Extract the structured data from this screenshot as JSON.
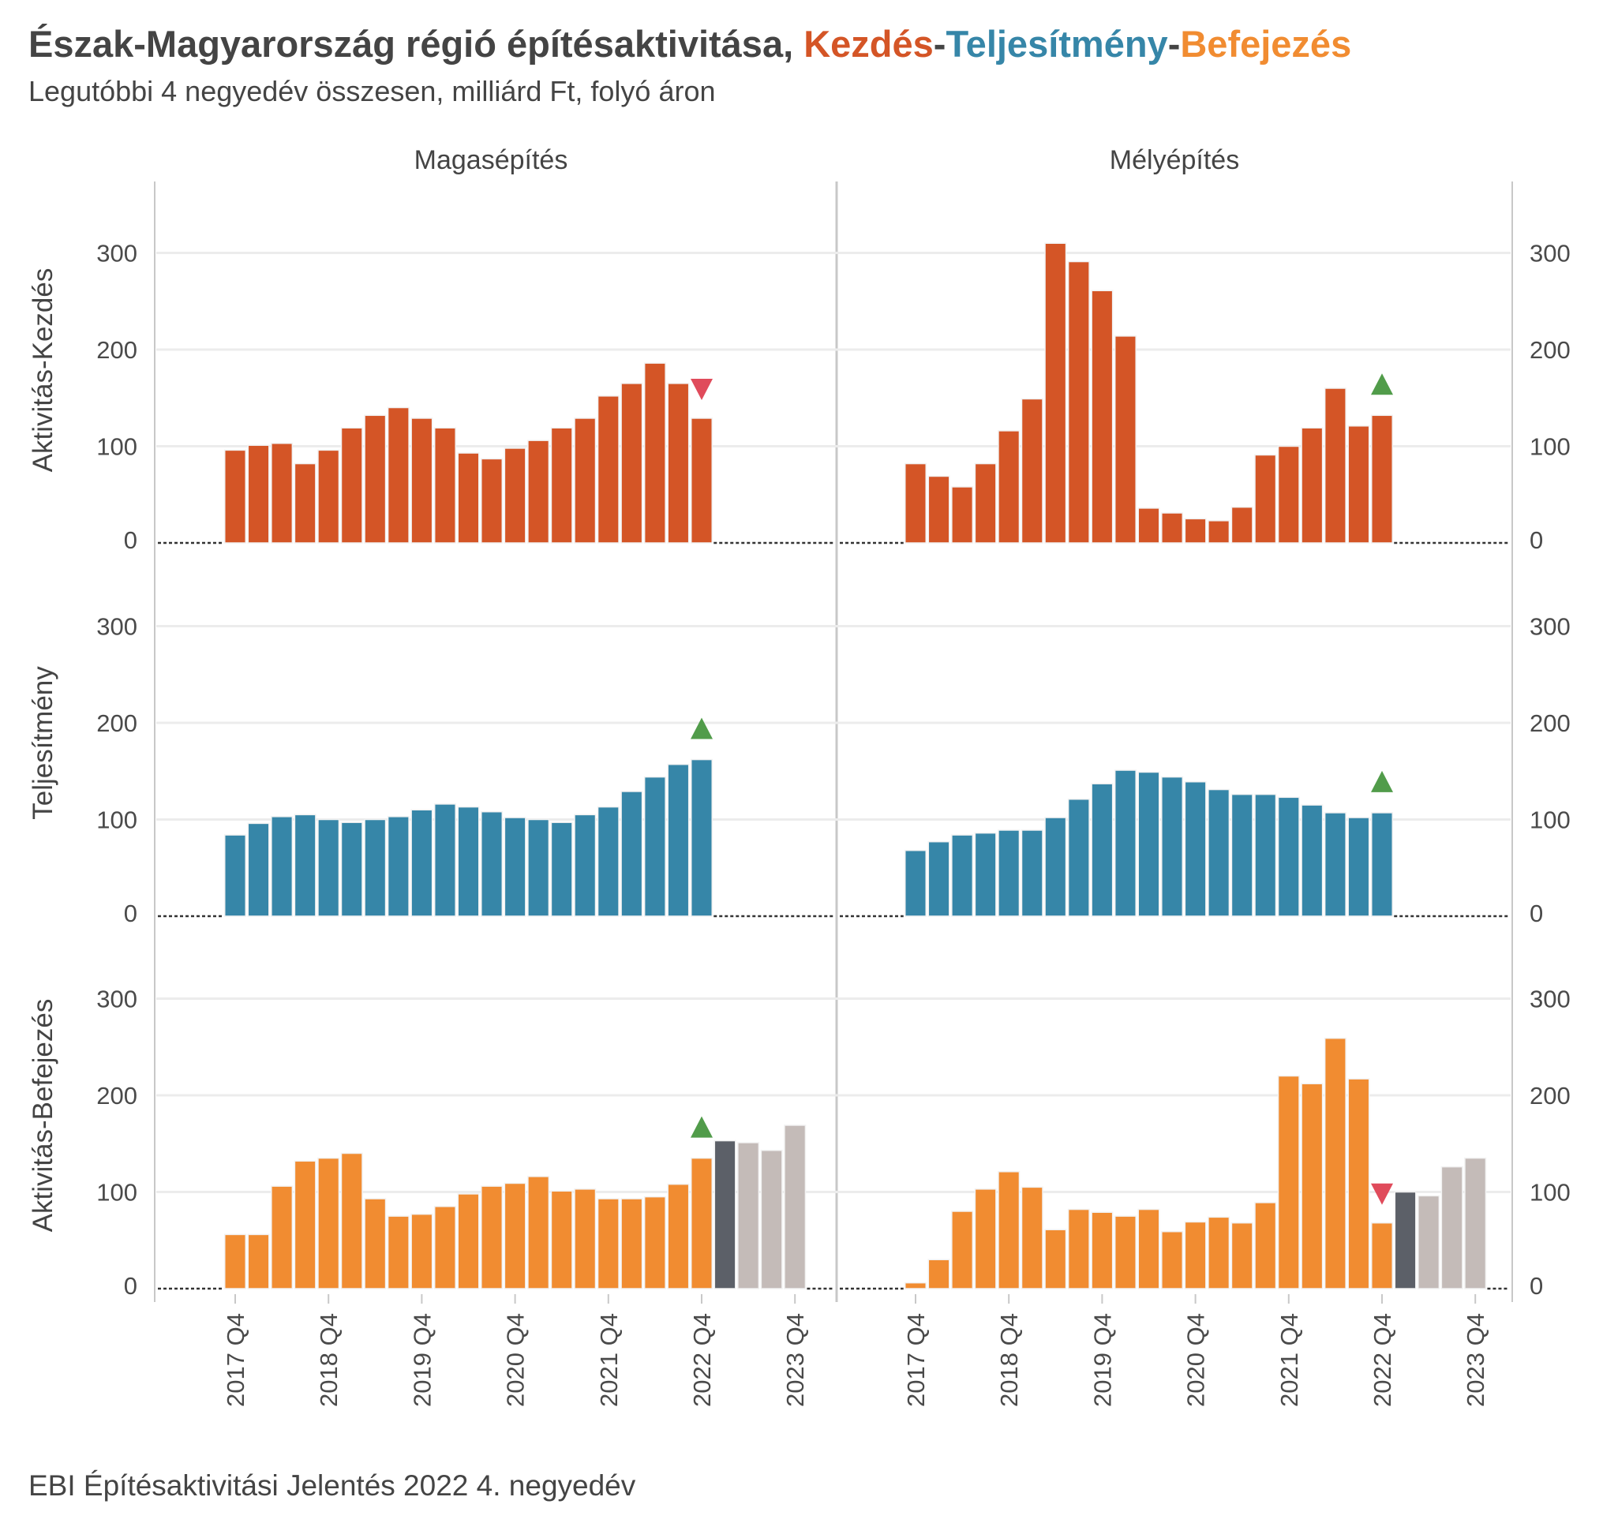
{
  "header": {
    "title_main": "Észak-Magyarország régió építésaktivitása, ",
    "title_kezdes": "Kezdés",
    "title_dash1": "-",
    "title_teljesitmeny": "Teljesítmény",
    "title_dash2": "-",
    "title_befejezes": "Befejezés",
    "subtitle": "Legutóbbi 4 negyedév összesen, milliárd Ft, folyó áron"
  },
  "caption": "EBI Építésaktivitási Jelentés 2022 4. negyedév",
  "colors": {
    "kezdes": "#d45526",
    "teljesitmeny": "#3686a8",
    "befejezes": "#f18c31",
    "forecast_first": "#5c6068",
    "forecast_rest": "#c4bbb8",
    "arrow_up": "#519c4a",
    "arrow_down": "#e04b5b",
    "grid": "#ececec",
    "axis": "#c8c8c8"
  },
  "chart_data": {
    "type": "bar",
    "columns": [
      "Magasépítés",
      "Mélyépítés"
    ],
    "rows": [
      "Aktivitás-Kezdés",
      "Teljesítmény",
      "Aktivitás-Befejezés"
    ],
    "x_tick_labels": [
      "2017 Q4",
      "2018 Q4",
      "2019 Q4",
      "2020 Q4",
      "2021 Q4",
      "2022 Q4",
      "2023 Q4"
    ],
    "ylim": [
      0,
      370
    ],
    "yticks": [
      0,
      100,
      200,
      300
    ],
    "grid": true,
    "panels": [
      {
        "column": "Magasépítés",
        "row": "Aktivitás-Kezdés",
        "series": "Kezdés",
        "start": "2017 Q4",
        "values": [
          96,
          101,
          103,
          82,
          96,
          119,
          132,
          140,
          129,
          119,
          93,
          87,
          98,
          106,
          119,
          129,
          152,
          165,
          186,
          165,
          129
        ],
        "forecast": [],
        "arrow": "down"
      },
      {
        "column": "Mélyépítés",
        "row": "Aktivitás-Kezdés",
        "series": "Kezdés",
        "start": "2017 Q4",
        "values": [
          82,
          69,
          58,
          82,
          116,
          149,
          310,
          291,
          261,
          214,
          36,
          31,
          25,
          23,
          37,
          91,
          100,
          119,
          160,
          121,
          132
        ],
        "forecast": [],
        "arrow": "up"
      },
      {
        "column": "Magasépítés",
        "row": "Teljesítmény",
        "series": "Teljesítmény",
        "start": "2017 Q4",
        "values": [
          84,
          96,
          103,
          105,
          100,
          97,
          100,
          103,
          110,
          116,
          113,
          108,
          102,
          100,
          97,
          105,
          113,
          129,
          144,
          157,
          162
        ],
        "forecast": [],
        "arrow": "up"
      },
      {
        "column": "Mélyépítés",
        "row": "Teljesítmény",
        "series": "Teljesítmény",
        "start": "2017 Q4",
        "values": [
          68,
          77,
          84,
          86,
          89,
          89,
          102,
          121,
          137,
          151,
          149,
          144,
          139,
          131,
          126,
          126,
          123,
          115,
          107,
          102,
          107
        ],
        "forecast": [],
        "arrow": "up"
      },
      {
        "column": "Magasépítés",
        "row": "Aktivitás-Befejezés",
        "series": "Befejezés",
        "start": "2017 Q4",
        "values": [
          56,
          56,
          106,
          132,
          135,
          140,
          93,
          75,
          77,
          85,
          98,
          106,
          109,
          116,
          101,
          103,
          93,
          93,
          95,
          108,
          135
        ],
        "forecast": [
          153,
          151,
          143,
          169
        ],
        "arrow": "up"
      },
      {
        "column": "Mélyépítés",
        "row": "Aktivitás-Befejezés",
        "series": "Befejezés",
        "start": "2017 Q4",
        "values": [
          6,
          30,
          80,
          103,
          121,
          105,
          61,
          82,
          79,
          75,
          82,
          59,
          69,
          74,
          68,
          89,
          220,
          212,
          259,
          217,
          68
        ],
        "forecast": [
          100,
          96,
          126,
          135
        ],
        "arrow": "down"
      }
    ]
  }
}
